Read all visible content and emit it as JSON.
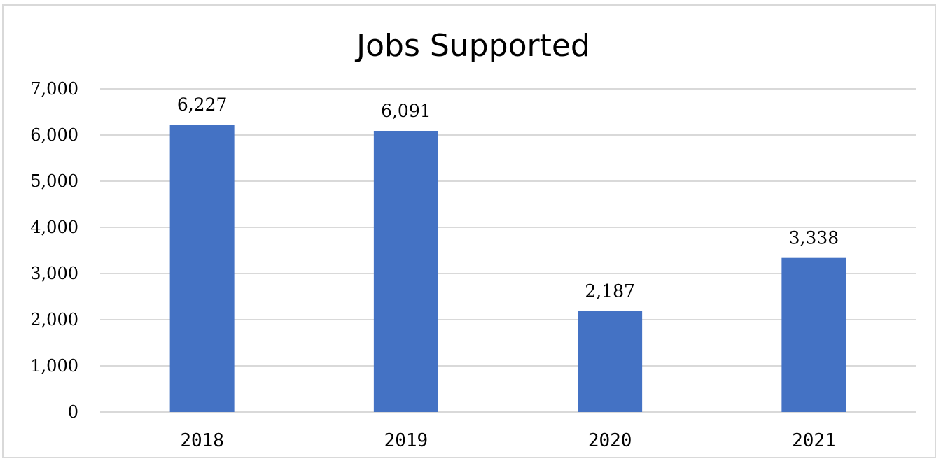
{
  "chart_data": {
    "type": "bar",
    "title": "Jobs Supported",
    "xlabel": "",
    "ylabel": "",
    "categories": [
      "2018",
      "2019",
      "2020",
      "2021"
    ],
    "values": [
      6227,
      6091,
      2187,
      3338
    ],
    "value_labels": [
      "6,227",
      "6,091",
      "2,187",
      "3,338"
    ],
    "ylim": [
      0,
      7000
    ],
    "yticks": [
      0,
      1000,
      2000,
      3000,
      4000,
      5000,
      6000,
      7000
    ],
    "ytick_labels": [
      "0",
      "1,000",
      "2,000",
      "3,000",
      "4,000",
      "5,000",
      "6,000",
      "7,000"
    ],
    "grid": true,
    "legend": "none",
    "bar_color": "#4472C4",
    "grid_color": "#d9d9d9"
  }
}
